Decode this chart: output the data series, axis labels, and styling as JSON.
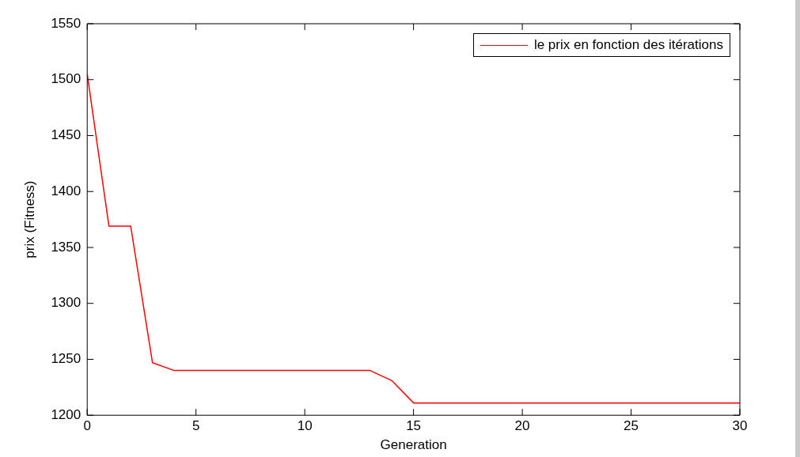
{
  "chart_data": {
    "type": "line",
    "xlabel": "Generation",
    "ylabel": "prix (Fitness)",
    "x": [
      0,
      1,
      2,
      3,
      4,
      5,
      6,
      7,
      8,
      9,
      10,
      11,
      12,
      13,
      14,
      15,
      16,
      17,
      18,
      19,
      20,
      21,
      22,
      23,
      24,
      25,
      26,
      27,
      28,
      29,
      30
    ],
    "series": [
      {
        "name": "le prix en fonction des itérations",
        "color": "#ff0000",
        "values": [
          1505,
          1369,
          1369,
          1247,
          1240,
          1240,
          1240,
          1240,
          1240,
          1240,
          1240,
          1240,
          1240,
          1240,
          1231,
          1211,
          1211,
          1211,
          1211,
          1211,
          1211,
          1211,
          1211,
          1211,
          1211,
          1211,
          1211,
          1211,
          1211,
          1211,
          1211
        ]
      }
    ],
    "xlim": [
      0,
      30
    ],
    "xticks": [
      0,
      5,
      10,
      15,
      20,
      25,
      30
    ],
    "ylim": [
      1200,
      1550
    ],
    "yticks": [
      1200,
      1250,
      1300,
      1350,
      1400,
      1450,
      1500,
      1550
    ],
    "grid": false,
    "legend": "top right",
    "marker": "none",
    "line_style": "solid"
  }
}
